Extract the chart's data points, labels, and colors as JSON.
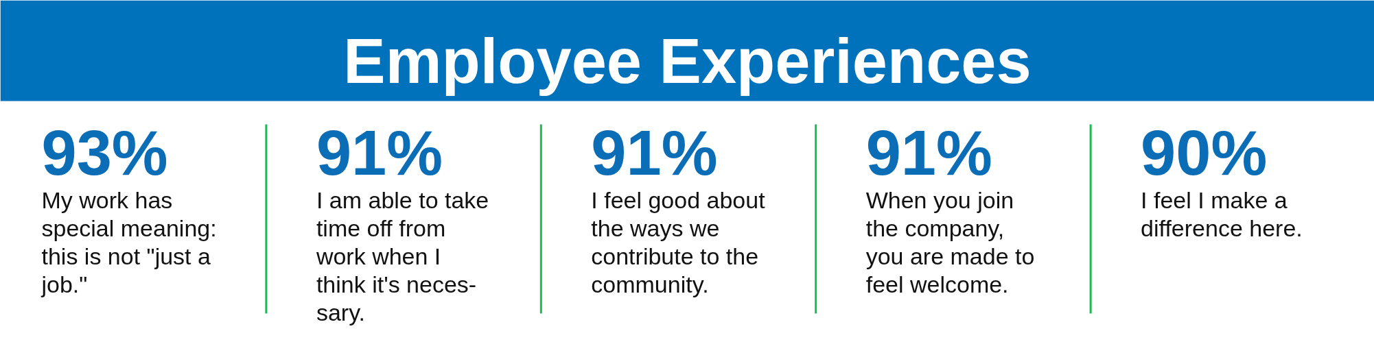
{
  "chart_data": {
    "type": "other",
    "title": "Employee Experiences",
    "categories": [
      "My work has\nspecial meaning:\nthis is not \"just a\njob.\"",
      "I am able to take\ntime off from\nwork when I\nthink it's neces-\nsary.",
      "I feel good about\nthe ways we\ncontribute to the\ncommunity.",
      "When you join\nthe company,\nyou are made to\nfeel welcome.",
      "I feel I make a\ndifference here."
    ],
    "values": [
      93,
      91,
      91,
      91,
      90
    ],
    "value_labels": [
      "93%",
      "91%",
      "91%",
      "91%",
      "90%"
    ],
    "color": "#0a6db5"
  }
}
